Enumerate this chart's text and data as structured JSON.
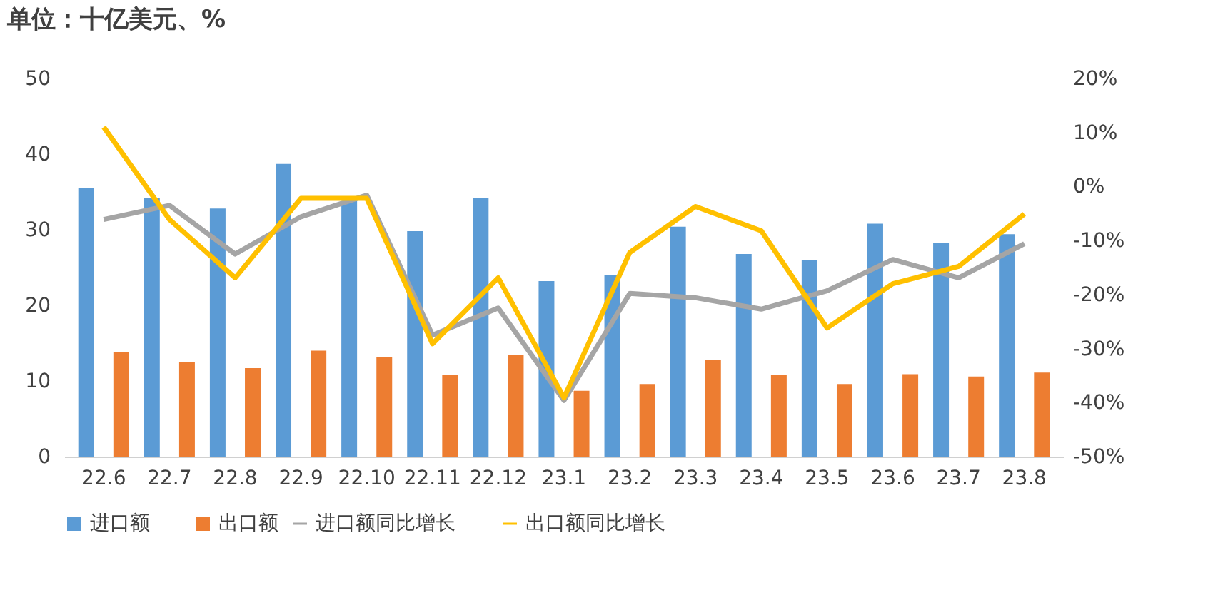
{
  "chart_data": {
    "type": "bar",
    "title": "单位：十亿美元、%",
    "categories": [
      "22.6",
      "22.7",
      "22.8",
      "22.9",
      "22.10",
      "22.11",
      "22.12",
      "23.1",
      "23.2",
      "23.3",
      "23.4",
      "23.5",
      "23.6",
      "23.7",
      "23.8"
    ],
    "series": [
      {
        "name": "进口额",
        "color": "#5b9bd5",
        "values": [
          35.5,
          34.2,
          32.8,
          38.7,
          33.8,
          29.8,
          34.2,
          23.2,
          24.0,
          30.4,
          26.8,
          26.0,
          30.8,
          28.3,
          29.4
        ]
      },
      {
        "name": "出口额",
        "color": "#ed7d31",
        "values": [
          13.8,
          12.5,
          11.7,
          14.0,
          13.2,
          10.8,
          13.4,
          8.7,
          9.6,
          12.8,
          10.8,
          9.6,
          10.9,
          10.6,
          11.1
        ]
      },
      {
        "name": "进口额同比增长",
        "color": "#a5a5a5",
        "type": "line",
        "axis": "y2",
        "values": [
          -6.1,
          -3.5,
          -12.5,
          -5.6,
          -1.6,
          -27.5,
          -22.5,
          -39.6,
          -19.8,
          -20.6,
          -22.7,
          -19.3,
          -13.5,
          -16.9,
          -10.6
        ]
      },
      {
        "name": "出口额同比增长",
        "color": "#ffc000",
        "type": "line",
        "axis": "y2",
        "values": [
          11.0,
          -6.1,
          -16.9,
          -2.2,
          -2.2,
          -29.1,
          -16.9,
          -39.1,
          -12.2,
          -3.7,
          -8.2,
          -26.2,
          -18.0,
          -14.8,
          -5.1
        ]
      }
    ],
    "ylim": [
      0,
      50
    ],
    "yticks": [
      0,
      10,
      20,
      30,
      40,
      50
    ],
    "y2lim": [
      -50,
      20
    ],
    "y2ticks": [
      {
        "value": -50,
        "label": "-50%"
      },
      {
        "value": -40,
        "label": "-40%"
      },
      {
        "value": -30,
        "label": "-30%"
      },
      {
        "value": -20,
        "label": "-20%"
      },
      {
        "value": -10,
        "label": "-10%"
      },
      {
        "value": 0,
        "label": "0%"
      },
      {
        "value": 10,
        "label": "10%"
      },
      {
        "value": 20,
        "label": "20%"
      }
    ],
    "grid": false,
    "legend": "bottom"
  }
}
